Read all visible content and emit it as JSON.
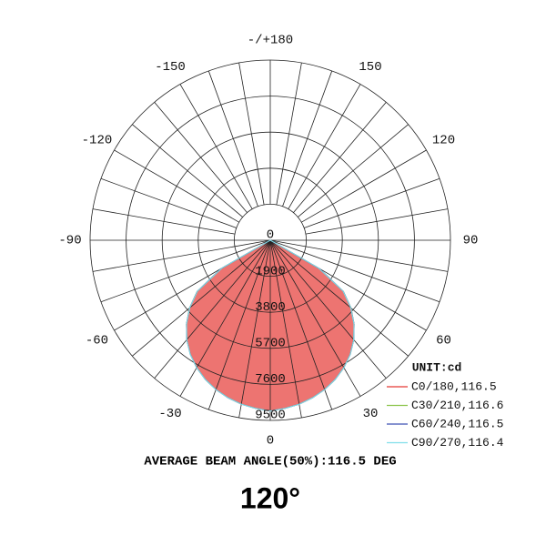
{
  "chart_data": {
    "type": "polar",
    "title": "120°",
    "note": "AVERAGE BEAM ANGLE(50%):116.5 DEG",
    "unit": "UNIT:cd",
    "rlim": [
      0,
      9500
    ],
    "rticks": [
      0,
      1900,
      3800,
      5700,
      7600,
      9500
    ],
    "angle_ticks": [
      {
        "value": 180,
        "label": "-/+180"
      },
      150,
      120,
      90,
      60,
      30,
      0,
      -30,
      -60,
      -90,
      -120,
      -150
    ],
    "angles": [
      -90,
      -85,
      -80,
      -75,
      -70,
      -65,
      -60,
      -55,
      -50,
      -45,
      -40,
      -35,
      -30,
      -25,
      -20,
      -15,
      -10,
      -5,
      0,
      5,
      10,
      15,
      20,
      25,
      30,
      35,
      40,
      45,
      50,
      55,
      60,
      65,
      70,
      75,
      80,
      85,
      90
    ],
    "series": [
      {
        "name": "C0/180,116.5",
        "color": "#e53935",
        "values": [
          0,
          0,
          0,
          0,
          0,
          0,
          3000,
          4700,
          5550,
          6250,
          6850,
          7350,
          7760,
          8100,
          8380,
          8600,
          8780,
          8900,
          9000,
          8900,
          8780,
          8600,
          8380,
          8100,
          7760,
          7350,
          6850,
          6250,
          5550,
          4700,
          3000,
          0,
          0,
          0,
          0,
          0,
          0
        ]
      },
      {
        "name": "C30/210,116.6",
        "color": "#8bc34a",
        "values": [
          0,
          0,
          0,
          0,
          0,
          0,
          3000,
          4710,
          5560,
          6250,
          6850,
          7350,
          7760,
          8100,
          8380,
          8600,
          8780,
          8900,
          9000,
          8900,
          8780,
          8600,
          8380,
          8100,
          7760,
          7350,
          6850,
          6250,
          5560,
          4710,
          3000,
          0,
          0,
          0,
          0,
          0,
          0
        ]
      },
      {
        "name": "C60/240,116.5",
        "color": "#3f51b5",
        "values": [
          0,
          0,
          0,
          0,
          0,
          0,
          3000,
          4700,
          5550,
          6250,
          6850,
          7350,
          7760,
          8100,
          8380,
          8600,
          8780,
          8900,
          9000,
          8900,
          8780,
          8600,
          8380,
          8100,
          7760,
          7350,
          6850,
          6250,
          5550,
          4700,
          3000,
          0,
          0,
          0,
          0,
          0,
          0
        ]
      },
      {
        "name": "C90/270,116.4",
        "color": "#80deea",
        "values": [
          0,
          0,
          0,
          0,
          0,
          0,
          2950,
          4690,
          5540,
          6240,
          6850,
          7350,
          7760,
          8100,
          8380,
          8600,
          8780,
          8900,
          9000,
          8900,
          8780,
          8600,
          8380,
          8100,
          7760,
          7350,
          6850,
          6240,
          5540,
          4690,
          2950,
          0,
          0,
          0,
          0,
          0,
          0
        ]
      }
    ]
  }
}
